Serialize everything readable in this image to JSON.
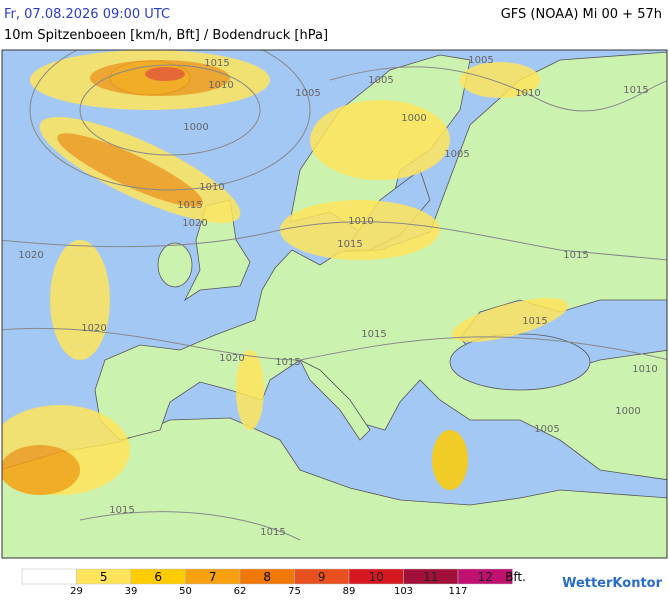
{
  "header": {
    "datetime": "Fr, 07.08.2026 09:00 UTC",
    "model": "GFS (NOAA) Mi 00 + 57h",
    "subtitle": "10m Spitzenboeen [km/h, Bft] / Bodendruck [hPa]"
  },
  "isobar_labels": [
    "1015",
    "1010",
    "1005",
    "1000",
    "1005",
    "1000",
    "1005",
    "1010",
    "1015",
    "1005",
    "1010",
    "1015",
    "1020",
    "1010",
    "1015",
    "1020",
    "1015",
    "1020",
    "1015",
    "1015",
    "1020",
    "1015",
    "1010",
    "1000",
    "1005",
    "1015",
    "1015"
  ],
  "legend": {
    "bft": [
      "5",
      "6",
      "7",
      "8",
      "9",
      "10",
      "11",
      "12"
    ],
    "unit": "Bft.",
    "kmh": [
      "29",
      "39",
      "50",
      "62",
      "75",
      "89",
      "103",
      "117"
    ],
    "colors": [
      "#ffffff",
      "#ffe45a",
      "#ffcc00",
      "#f8a010",
      "#f07808",
      "#e85020",
      "#d81820",
      "#a01038",
      "#c01070"
    ]
  },
  "logo": "WetterKontor"
}
